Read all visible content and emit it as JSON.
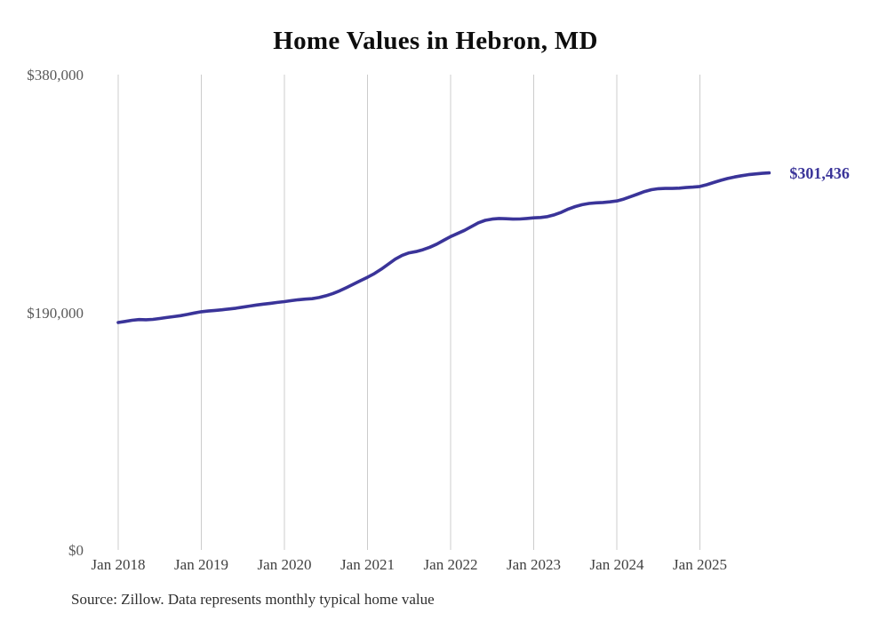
{
  "accent_color": "#3a3499",
  "grid_color": "#cccccc",
  "chart_data": {
    "type": "line",
    "title": "Home Values in Hebron, MD",
    "series_name": "Monthly typical home value",
    "x_start": "Jan 2018",
    "x_interval": "monthly",
    "values": [
      181800,
      182700,
      183600,
      184200,
      184000,
      184300,
      185000,
      185800,
      186500,
      187300,
      188300,
      189400,
      190400,
      191000,
      191500,
      192000,
      192600,
      193300,
      194100,
      195000,
      195800,
      196500,
      197200,
      197900,
      198500,
      199300,
      200000,
      200500,
      200900,
      201800,
      203200,
      205000,
      207200,
      209800,
      212500,
      215300,
      218000,
      221000,
      224500,
      228500,
      232500,
      235500,
      237500,
      238500,
      240000,
      242000,
      244500,
      247500,
      250500,
      253000,
      255500,
      258500,
      261500,
      263500,
      264500,
      265000,
      264800,
      264500,
      264600,
      265000,
      265500,
      265800,
      266500,
      268000,
      270000,
      272500,
      274500,
      276000,
      277000,
      277500,
      277800,
      278300,
      279000,
      280500,
      282500,
      284500,
      286500,
      288000,
      288800,
      289000,
      289000,
      289200,
      289700,
      290100,
      290600,
      292000,
      293800,
      295500,
      297000,
      298200,
      299200,
      300000,
      300600,
      301100,
      301436
    ],
    "x_ticks": [
      "Jan 2018",
      "Jan 2019",
      "Jan 2020",
      "Jan 2021",
      "Jan 2022",
      "Jan 2023",
      "Jan 2024",
      "Jan 2025"
    ],
    "y_ticks": [
      {
        "label": "$0",
        "value": 0
      },
      {
        "label": "$190,000",
        "value": 190000
      },
      {
        "label": "$380,000",
        "value": 380000
      }
    ],
    "ylim": [
      0,
      380000
    ],
    "grid": "vertical-only",
    "legend": "none",
    "end_label": "$301,436",
    "source": "Source: Zillow. Data represents monthly typical home value"
  }
}
